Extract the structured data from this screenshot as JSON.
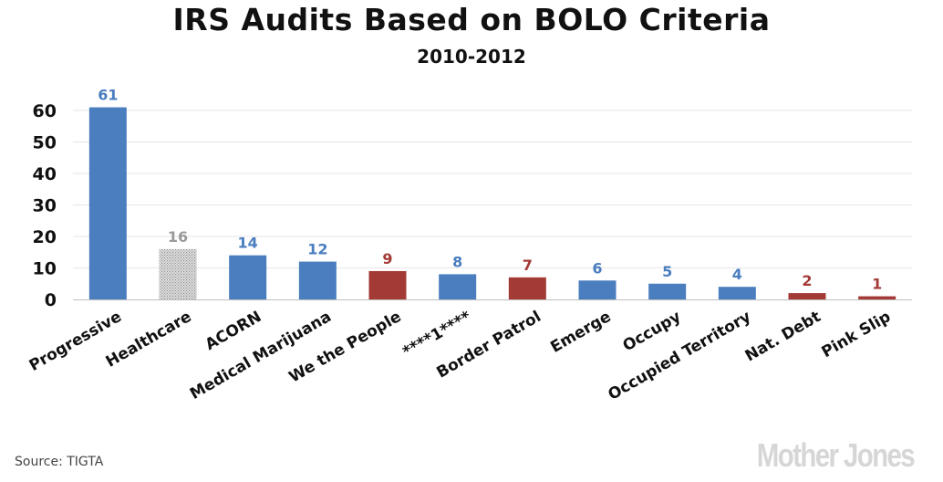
{
  "chart_data": {
    "type": "bar",
    "title": "IRS Audits Based on BOLO Criteria",
    "subtitle": "2010-2012",
    "categories": [
      "Progressive",
      "Healthcare",
      "ACORN",
      "Medical Marijuana",
      "We the People",
      "****1****",
      "Border Patrol",
      "Emerge",
      "Occupy",
      "Occupied Territory",
      "Nat. Debt",
      "Pink Slip"
    ],
    "values": [
      61,
      16,
      14,
      12,
      9,
      8,
      7,
      6,
      5,
      4,
      2,
      1
    ],
    "groups": [
      "liberal",
      "neutral",
      "liberal",
      "liberal",
      "conservative",
      "liberal",
      "conservative",
      "liberal",
      "liberal",
      "liberal",
      "conservative",
      "conservative"
    ],
    "group_colors": {
      "liberal": "#4a7ebf",
      "neutral": "#c9c9c9",
      "conservative": "#a33a36"
    },
    "label_colors": {
      "liberal": "#4a7ebf",
      "neutral": "#9a9a9a",
      "conservative": "#a33a36"
    },
    "ylim": [
      0,
      60
    ],
    "yticks": [
      0,
      10,
      20,
      30,
      40,
      50,
      60
    ],
    "xlabel": "",
    "ylabel": "",
    "grid": true
  },
  "footer": {
    "source": "Source:  TIGTA",
    "brand": "Mother Jones"
  }
}
